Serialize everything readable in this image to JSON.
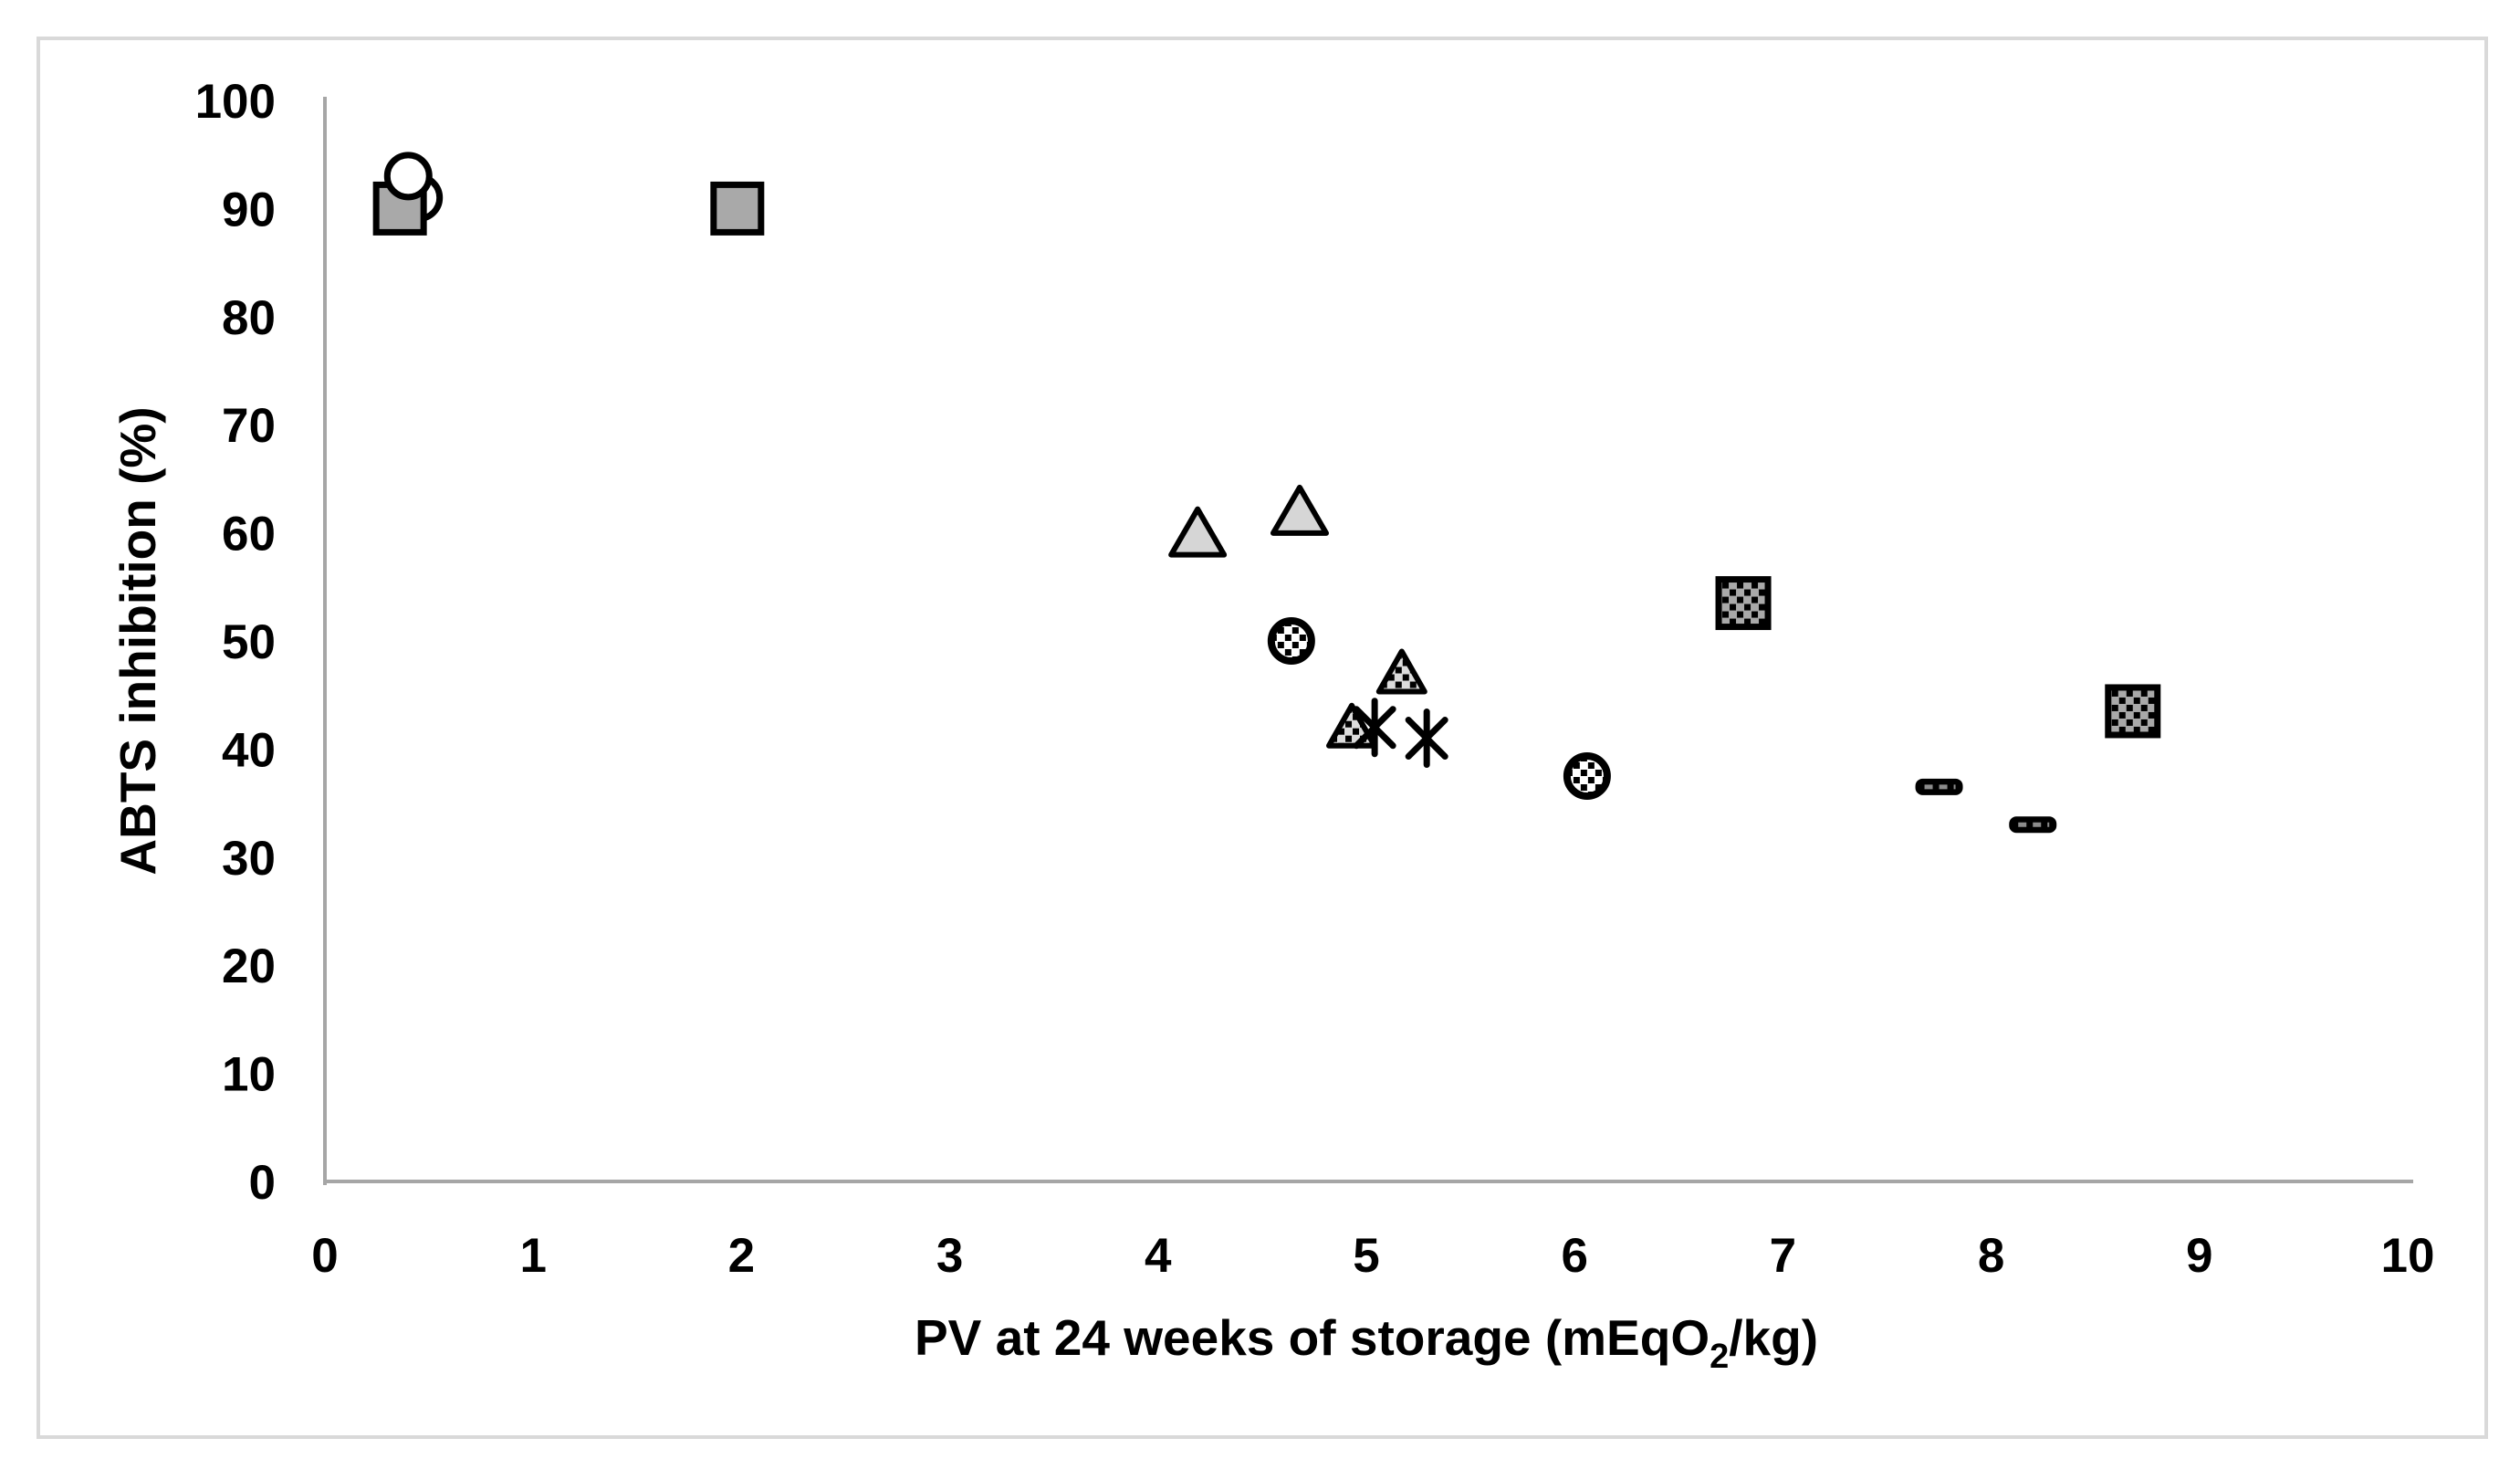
{
  "figure": {
    "background": "#ffffff",
    "border_color": "#d9d9d9"
  },
  "chart_data": {
    "type": "scatter",
    "title": "",
    "xlabel": "PV at 24 weeks of storage (mEqO2/kg)",
    "xlabel_parts": {
      "prefix": "PV at 24 weeks of storage (mEqO",
      "sub": "2",
      "suffix": "/kg)"
    },
    "ylabel": "ABTS inhibition (%)",
    "xlim": [
      0,
      10
    ],
    "ylim": [
      0,
      100
    ],
    "x_ticks": [
      0,
      1,
      2,
      3,
      4,
      5,
      6,
      7,
      8,
      9,
      10
    ],
    "y_ticks": [
      0,
      10,
      20,
      30,
      40,
      50,
      60,
      70,
      80,
      90,
      100
    ],
    "grid": false,
    "legend": "none",
    "axis_color": "#a6a6a6",
    "text_color": "#000000",
    "series": [
      {
        "name": "open-circle-behind-square",
        "marker": "circle",
        "fill": "#ffffff",
        "points": [
          [
            0.45,
            91
          ]
        ]
      },
      {
        "name": "gray-square",
        "marker": "square",
        "fill": "#a9a9a9",
        "points": [
          [
            0.36,
            90
          ],
          [
            1.98,
            90
          ]
        ]
      },
      {
        "name": "open-circle",
        "marker": "circle",
        "fill": "#ffffff",
        "points": [
          [
            0.4,
            93
          ]
        ]
      },
      {
        "name": "gray-triangle",
        "marker": "triangle",
        "fill": "#d6d6d6",
        "points": [
          [
            4.19,
            60
          ],
          [
            4.68,
            62
          ]
        ]
      },
      {
        "name": "dotted-circle",
        "marker": "dotted-circle",
        "fill": "#ffffff",
        "points": [
          [
            4.64,
            50
          ],
          [
            6.06,
            37.5
          ]
        ]
      },
      {
        "name": "dotted-triangle",
        "marker": "dotted-triangle",
        "fill": "#dcdcdc",
        "points": [
          [
            5.17,
            47
          ],
          [
            4.93,
            42
          ]
        ]
      },
      {
        "name": "asterisk",
        "marker": "asterisk",
        "fill": "#000000",
        "points": [
          [
            5.04,
            42
          ],
          [
            5.29,
            41
          ]
        ]
      },
      {
        "name": "dotted-square",
        "marker": "dotted-square",
        "fill": "#a9a9a9",
        "points": [
          [
            6.81,
            53.5
          ],
          [
            8.68,
            43.5
          ]
        ]
      },
      {
        "name": "dash",
        "marker": "dash",
        "fill": "#000000",
        "points": [
          [
            7.75,
            36.5
          ],
          [
            8.2,
            33
          ]
        ]
      }
    ]
  }
}
